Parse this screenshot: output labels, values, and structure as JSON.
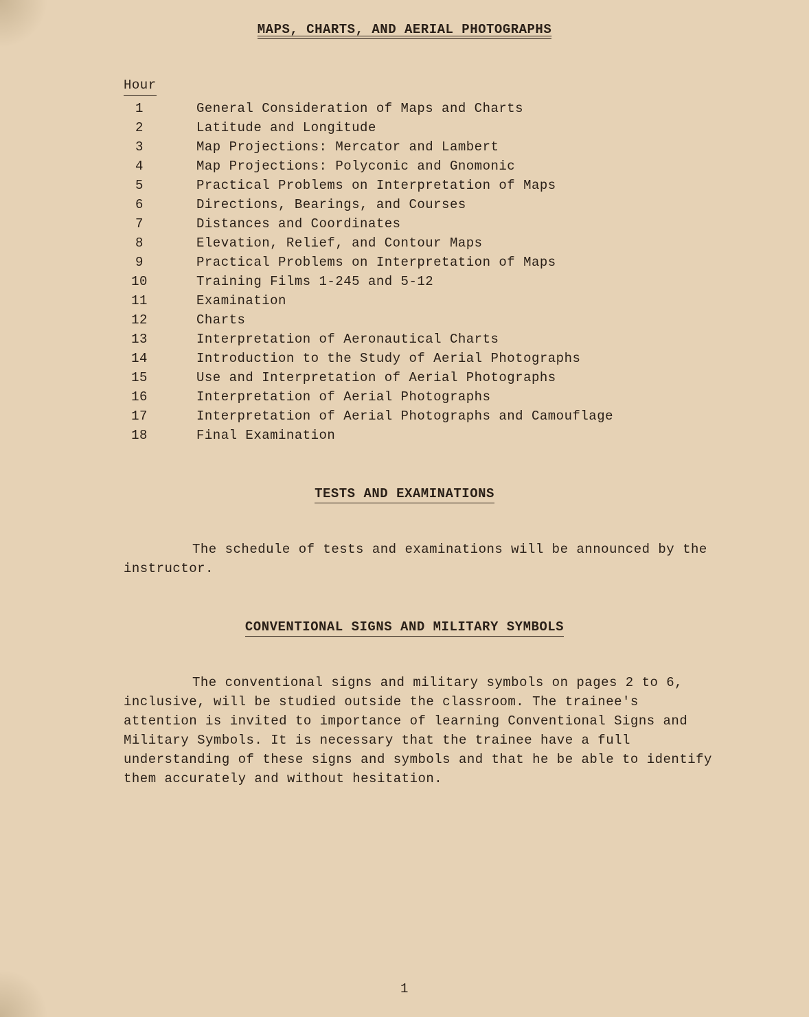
{
  "document": {
    "title": "MAPS, CHARTS, AND AERIAL PHOTOGRAPHS",
    "page_number": "1",
    "background_color": "#e6d2b5",
    "text_color": "#2a2018",
    "font_family": "Courier New",
    "font_size_pt": 14
  },
  "schedule": {
    "header": "Hour",
    "rows": [
      {
        "hour": "1",
        "topic": "General Consideration of Maps and Charts"
      },
      {
        "hour": "2",
        "topic": "Latitude and Longitude"
      },
      {
        "hour": "3",
        "topic": "Map Projections:  Mercator and Lambert"
      },
      {
        "hour": "4",
        "topic": "Map Projections:  Polyconic and Gnomonic"
      },
      {
        "hour": "5",
        "topic": "Practical Problems on Interpretation of Maps"
      },
      {
        "hour": "6",
        "topic": "Directions, Bearings, and Courses"
      },
      {
        "hour": "7",
        "topic": "Distances and Coordinates"
      },
      {
        "hour": "8",
        "topic": "Elevation, Relief, and Contour Maps"
      },
      {
        "hour": "9",
        "topic": "Practical Problems on Interpretation of Maps"
      },
      {
        "hour": "10",
        "topic": "Training Films 1-245 and 5-12"
      },
      {
        "hour": "11",
        "topic": "Examination"
      },
      {
        "hour": "12",
        "topic": "Charts"
      },
      {
        "hour": "13",
        "topic": "Interpretation of Aeronautical Charts"
      },
      {
        "hour": "14",
        "topic": "Introduction to the Study of Aerial Photographs"
      },
      {
        "hour": "15",
        "topic": "Use and Interpretation of Aerial Photographs"
      },
      {
        "hour": "16",
        "topic": "Interpretation of Aerial Photographs"
      },
      {
        "hour": "17",
        "topic": "Interpretation of Aerial Photographs and Camouflage"
      },
      {
        "hour": "18",
        "topic": "Final Examination"
      }
    ]
  },
  "sections": {
    "tests": {
      "title": "TESTS AND EXAMINATIONS",
      "body": "The schedule of tests and examinations will be announced by the instructor."
    },
    "signs": {
      "title": "CONVENTIONAL SIGNS AND MILITARY SYMBOLS",
      "body": "The conventional signs and military symbols on pages 2 to 6, inclusive, will be studied outside the classroom.  The trainee's attention is invited to importance of learning Conventional Signs and Military Symbols.  It is necessary that the trainee have a full understanding of these signs and symbols and that he be able to identify them accurately and without hesitation."
    }
  }
}
